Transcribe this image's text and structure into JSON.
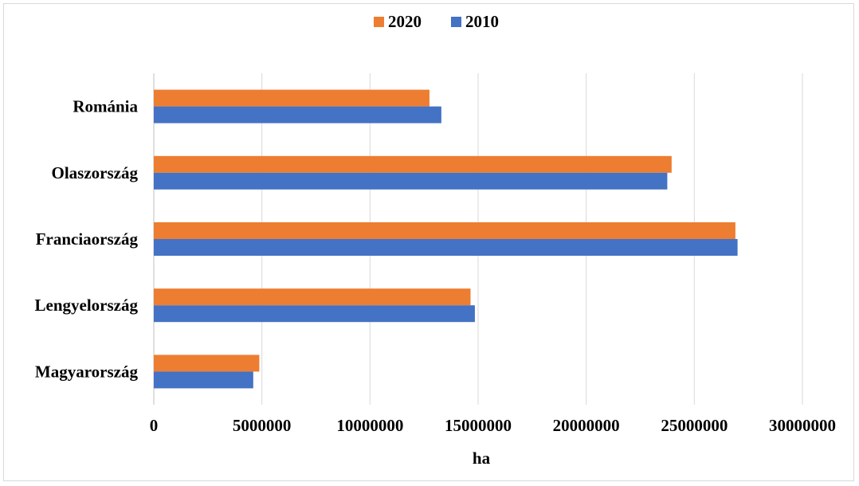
{
  "chart_data": {
    "type": "bar",
    "orientation": "horizontal",
    "categories": [
      "Magyarország",
      "Lengyelország",
      "Franciaország",
      "Olaszország",
      "Románia"
    ],
    "series": [
      {
        "name": "2020",
        "color": "#ED7D31",
        "values": [
          4880000,
          14650000,
          26900000,
          23950000,
          12750000
        ]
      },
      {
        "name": "2010",
        "color": "#4472C4",
        "values": [
          4600000,
          14850000,
          27000000,
          23750000,
          13300000
        ]
      }
    ],
    "xlabel": "ha",
    "xlim": [
      0,
      30000000
    ],
    "xticks": [
      "0",
      "5000000",
      "10000000",
      "15000000",
      "20000000",
      "25000000",
      "30000000"
    ],
    "grid": "vertical",
    "legend_position": "top"
  }
}
